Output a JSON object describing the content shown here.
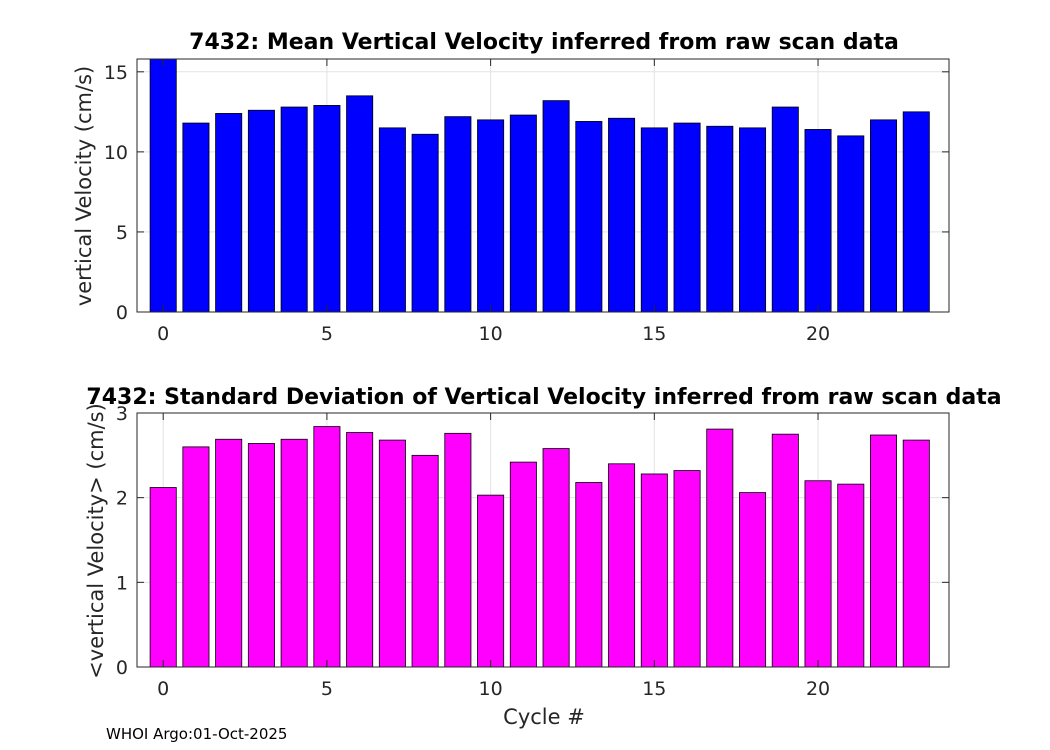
{
  "figure": {
    "footer": "WHOI Argo:01-Oct-2025"
  },
  "chart_data": [
    {
      "type": "bar",
      "title": "7432: Mean Vertical Velocity inferred from raw scan data",
      "xlabel": "",
      "ylabel": "vertical Velocity (cm/s)",
      "x": [
        0,
        1,
        2,
        3,
        4,
        5,
        6,
        7,
        8,
        9,
        10,
        11,
        12,
        13,
        14,
        15,
        16,
        17,
        18,
        19,
        20,
        21,
        22,
        23
      ],
      "values": [
        15.8,
        11.8,
        12.4,
        12.6,
        12.8,
        12.9,
        13.5,
        11.5,
        11.1,
        12.2,
        12.0,
        12.3,
        13.2,
        11.9,
        12.1,
        11.5,
        11.8,
        11.6,
        11.5,
        12.8,
        11.4,
        11.0,
        12.0,
        12.5
      ],
      "xlim": [
        -0.8,
        24.0
      ],
      "ylim": [
        0,
        15.8
      ],
      "xticks": [
        0,
        5,
        10,
        15,
        20
      ],
      "yticks": [
        0,
        5,
        10,
        15
      ],
      "bar_color": "#0000ff",
      "grid": true
    },
    {
      "type": "bar",
      "title": "7432: Standard Deviation of Vertical Velocity inferred from raw scan data",
      "xlabel": "Cycle #",
      "ylabel": "<vertical Velocity> (cm/s)",
      "x": [
        0,
        1,
        2,
        3,
        4,
        5,
        6,
        7,
        8,
        9,
        10,
        11,
        12,
        13,
        14,
        15,
        16,
        17,
        18,
        19,
        20,
        21,
        22,
        23
      ],
      "values": [
        2.12,
        2.6,
        2.69,
        2.64,
        2.69,
        2.84,
        2.77,
        2.68,
        2.5,
        2.76,
        2.03,
        2.42,
        2.58,
        2.18,
        2.4,
        2.28,
        2.32,
        2.81,
        2.06,
        2.75,
        2.2,
        2.16,
        2.74,
        2.68
      ],
      "xlim": [
        -0.8,
        24.0
      ],
      "ylim": [
        0,
        3
      ],
      "xticks": [
        0,
        5,
        10,
        15,
        20
      ],
      "yticks": [
        0,
        1,
        2,
        3
      ],
      "bar_color": "#ff00ff",
      "grid": true
    }
  ]
}
